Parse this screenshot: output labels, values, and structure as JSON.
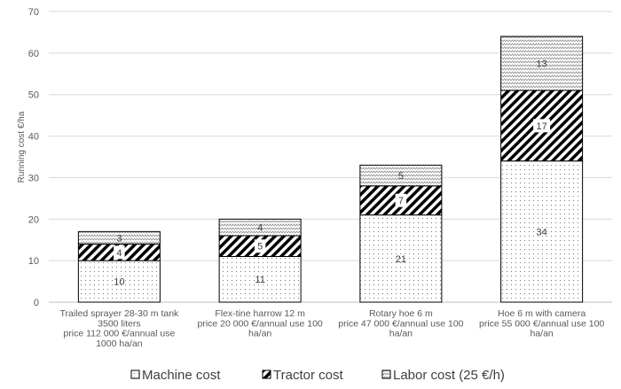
{
  "chart_data": {
    "type": "bar",
    "stacked": true,
    "title": "",
    "ylabel": "Running cost €/ha",
    "ylim": [
      0,
      70
    ],
    "yticks": [
      0,
      10,
      20,
      30,
      40,
      50,
      60,
      70
    ],
    "grid": true,
    "legend_position": "bottom",
    "categories": [
      [
        "Trailed sprayer 28-30 m tank",
        "3500 liters",
        "price 112 000 €/annual use",
        "1000 ha/an"
      ],
      [
        "Flex-tine harrow  12 m",
        "price 20 000 €/annual  use 100",
        "ha/an"
      ],
      [
        "Rotary hoe 6 m",
        "price 47 000 €/annual  use 100",
        "ha/an"
      ],
      [
        "Hoe 6 m with camera",
        "price 55 000 €/annual  use 100",
        "ha/an"
      ]
    ],
    "series": [
      {
        "name": "Machine cost",
        "values": [
          10,
          11,
          21,
          34
        ]
      },
      {
        "name": "Tractor cost",
        "values": [
          4,
          5,
          7,
          17
        ]
      },
      {
        "name": "Labor cost (25 €/h)",
        "values": [
          3,
          4,
          5,
          13
        ]
      }
    ]
  }
}
